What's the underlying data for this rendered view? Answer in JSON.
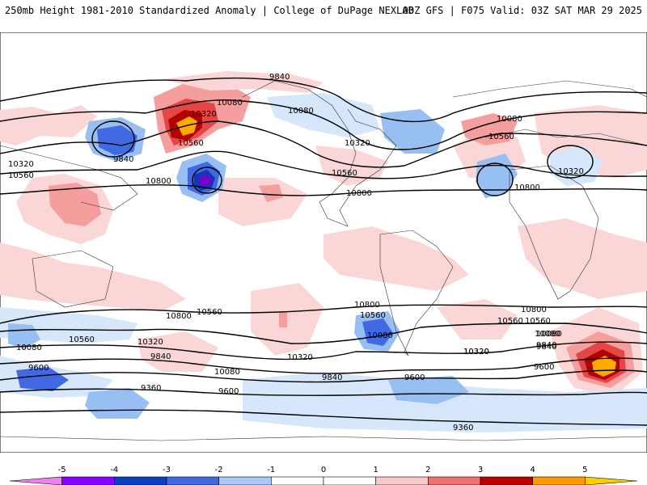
{
  "header": {
    "title_left": "250mb Height 1981-2010 Standardized Anomaly | College of DuPage NEXLAB",
    "title_right": "00Z GFS | F075 Valid: 03Z SAT MAR 29 2025"
  },
  "contour_labels": [
    "9840",
    "10080",
    "10320",
    "10560",
    "10800",
    "10080",
    "10320",
    "10560",
    "10320",
    "10560",
    "9840",
    "10800",
    "10080",
    "10320",
    "10560",
    "10800",
    "10560",
    "10800",
    "10320",
    "10560",
    "10080",
    "10560",
    "10320",
    "9840",
    "9600",
    "9360",
    "9600",
    "10080",
    "9840",
    "10320",
    "10800",
    "10560",
    "10080",
    "9840",
    "10080",
    "10320",
    "10800",
    "10560",
    "10080",
    "9840",
    "9600",
    "9600",
    "9360"
  ],
  "colorbar": {
    "tick_labels": [
      "-5",
      "-4",
      "-3",
      "-2",
      "-1",
      "0",
      "1",
      "2",
      "3",
      "4",
      "5"
    ],
    "colors": [
      "#ee82ee",
      "#8b00ff",
      "#0b3fbd",
      "#4169e1",
      "#aac8f5",
      "#ffffff",
      "#ffffff",
      "#f8c8c8",
      "#f07070",
      "#b80000",
      "#ff9900",
      "#ffcc00"
    ]
  },
  "anomaly_colors": {
    "neg1": "#d6e6fb",
    "neg2": "#98bff2",
    "neg3": "#4169e1",
    "neg4": "#1534b8",
    "neg5": "#7a00cc",
    "pos1": "#fbd6d6",
    "pos2": "#f59e9e",
    "pos3": "#e64545",
    "pos4": "#b30000",
    "pos5": "#ffaa00"
  }
}
